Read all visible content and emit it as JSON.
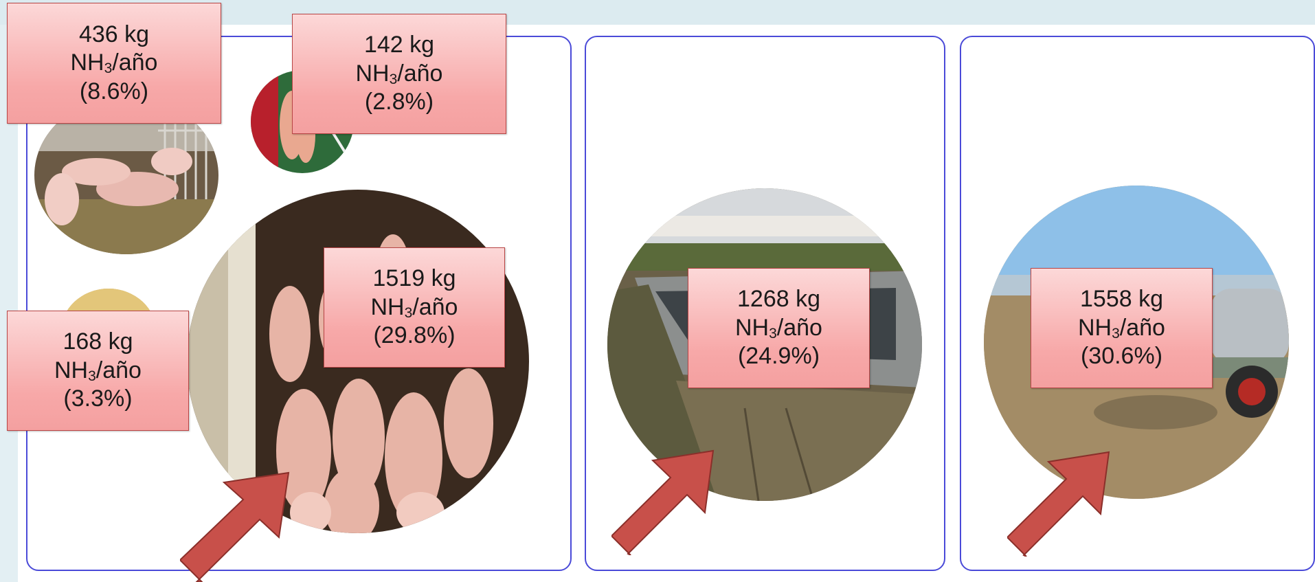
{
  "labels": [
    {
      "id": "gestation",
      "amount": "436 kg",
      "unit_prefix": "NH",
      "unit_sub": "3",
      "unit_suffix": "/año",
      "percent": "(8.6%)"
    },
    {
      "id": "farrowing",
      "amount": "142 kg",
      "unit_prefix": "NH",
      "unit_sub": "3",
      "unit_suffix": "/año",
      "percent": "(2.8%)"
    },
    {
      "id": "fattening",
      "amount": "1519 kg",
      "unit_prefix": "NH",
      "unit_sub": "3",
      "unit_suffix": "/año",
      "percent": "(29.8%)"
    },
    {
      "id": "nursery",
      "amount": "168 kg",
      "unit_prefix": "NH",
      "unit_sub": "3",
      "unit_suffix": "/año",
      "percent": "(3.3%)"
    },
    {
      "id": "storage",
      "amount": "1268 kg",
      "unit_prefix": "NH",
      "unit_sub": "3",
      "unit_suffix": "/año",
      "percent": "(24.9%)"
    },
    {
      "id": "application",
      "amount": "1558 kg",
      "unit_prefix": "NH",
      "unit_sub": "3",
      "unit_suffix": "/año",
      "percent": "(30.6%)"
    }
  ],
  "colors": {
    "panel_border": "#4a4ad8",
    "label_fill": "#f7a8a8",
    "label_border": "#b84545",
    "arrow": "#c8504a",
    "arrow_outline": "#8a2f2a",
    "band": "#dcebf0"
  },
  "icons": [
    "pig-photo",
    "lagoon-photo",
    "slurry-tanker-photo",
    "highlight-arrow-icon"
  ]
}
